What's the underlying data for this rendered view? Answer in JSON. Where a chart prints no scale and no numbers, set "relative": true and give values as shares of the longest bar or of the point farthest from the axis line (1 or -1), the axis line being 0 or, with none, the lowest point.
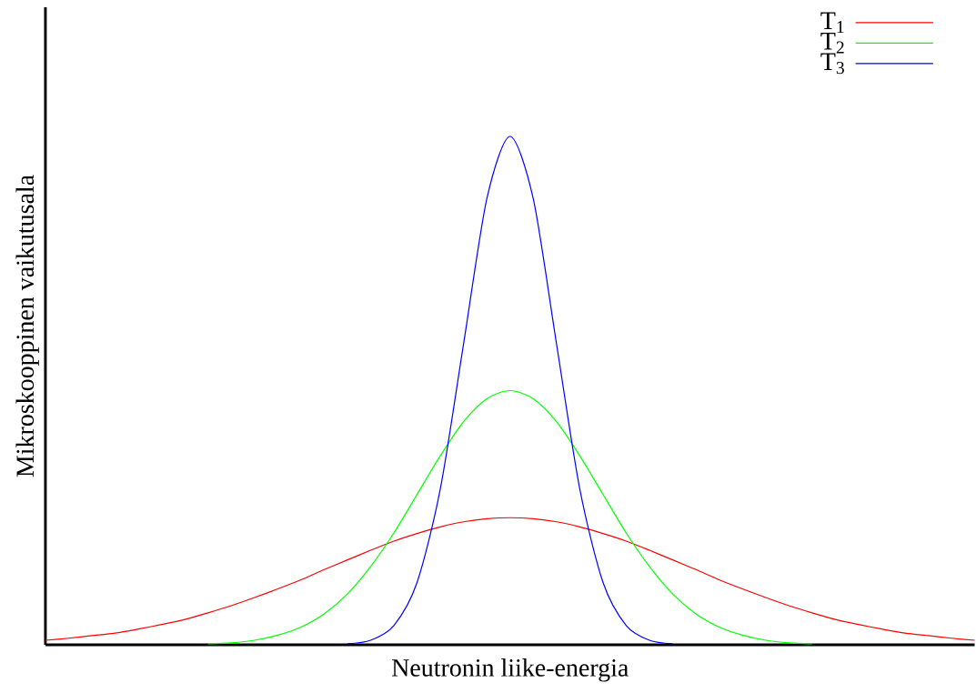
{
  "chart_data": {
    "type": "line",
    "relative": true,
    "xlabel": "Neutronin liike-energia",
    "ylabel": "Mikroskooppinen vaikutusala",
    "legend": "top right",
    "categories": [
      null,
      null,
      null,
      null,
      null,
      null,
      null,
      null,
      null,
      null,
      null,
      null,
      null,
      null,
      null,
      null,
      null,
      null,
      null,
      null,
      null,
      null,
      null,
      null,
      null,
      null,
      null,
      null,
      null,
      null,
      null,
      null,
      null,
      null,
      null,
      null,
      null,
      null,
      null,
      null,
      null
    ],
    "series": [
      {
        "name": "T$_{1}$",
        "color": "#ff0000",
        "values": [
          0.009,
          0.013,
          0.018,
          0.023,
          0.031,
          0.04,
          0.05,
          0.063,
          0.077,
          0.093,
          0.11,
          0.128,
          0.148,
          0.167,
          0.186,
          0.204,
          0.219,
          0.232,
          0.242,
          0.248,
          0.25,
          0.248,
          0.242,
          0.232,
          0.219,
          0.204,
          0.186,
          0.167,
          0.148,
          0.128,
          0.11,
          0.093,
          0.077,
          0.063,
          0.05,
          0.04,
          0.031,
          0.023,
          0.018,
          0.013,
          0.009
        ]
      },
      {
        "name": "T$_{2}$",
        "color": "#00ff00",
        "values": [
          null,
          null,
          null,
          null,
          null,
          null,
          null,
          0.002,
          0.004,
          0.009,
          0.019,
          0.035,
          0.061,
          0.1,
          0.154,
          0.22,
          0.296,
          0.372,
          0.439,
          0.484,
          0.5,
          0.484,
          0.439,
          0.372,
          0.296,
          0.22,
          0.154,
          0.1,
          0.061,
          0.035,
          0.019,
          0.009,
          0.004,
          0.002,
          null,
          null,
          null,
          null,
          null,
          null,
          null
        ]
      },
      {
        "name": "T$_{3}$",
        "color": "#0000ff",
        "values": [
          null,
          null,
          null,
          null,
          null,
          null,
          null,
          null,
          null,
          null,
          null,
          null,
          null,
          0.002,
          0.009,
          0.038,
          0.123,
          0.307,
          0.592,
          0.877,
          1,
          0.877,
          0.592,
          0.307,
          0.123,
          0.038,
          0.009,
          0.002,
          null,
          null,
          null,
          null,
          null,
          null,
          null,
          null,
          null,
          null,
          null,
          null,
          null
        ]
      }
    ]
  }
}
